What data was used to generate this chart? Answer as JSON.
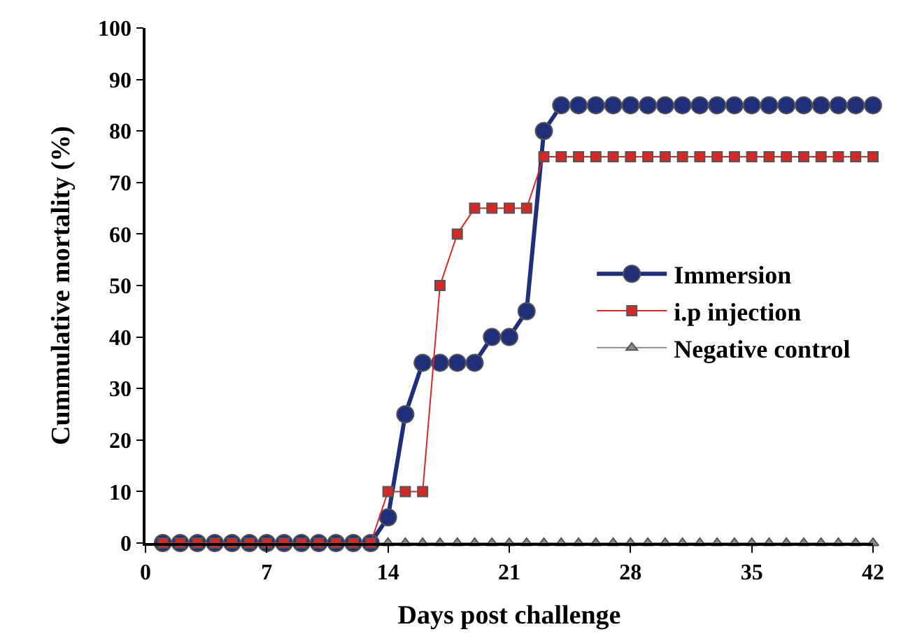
{
  "chart_data": {
    "type": "line",
    "xlabel": "Days post challenge",
    "ylabel": "Cummulative mortality (%)",
    "x": [
      1,
      2,
      3,
      4,
      5,
      6,
      7,
      8,
      9,
      10,
      11,
      12,
      13,
      14,
      15,
      16,
      17,
      18,
      19,
      20,
      21,
      22,
      23,
      24,
      25,
      26,
      27,
      28,
      29,
      30,
      31,
      32,
      33,
      34,
      35,
      36,
      37,
      38,
      39,
      40,
      41,
      42
    ],
    "series": [
      {
        "name": "Negative control",
        "color": "#8c8c8c",
        "marker": "triangle",
        "values": [
          0,
          0,
          0,
          0,
          0,
          0,
          0,
          0,
          0,
          0,
          0,
          0,
          0,
          0,
          0,
          0,
          0,
          0,
          0,
          0,
          0,
          0,
          0,
          0,
          0,
          0,
          0,
          0,
          0,
          0,
          0,
          0,
          0,
          0,
          0,
          0,
          0,
          0,
          0,
          0,
          0,
          0
        ]
      },
      {
        "name": "Immersion",
        "color": "#1f2f7a",
        "marker": "circle",
        "values": [
          0,
          0,
          0,
          0,
          0,
          0,
          0,
          0,
          0,
          0,
          0,
          0,
          0,
          5,
          25,
          35,
          35,
          35,
          35,
          40,
          40,
          45,
          80,
          85,
          85,
          85,
          85,
          85,
          85,
          85,
          85,
          85,
          85,
          85,
          85,
          85,
          85,
          85,
          85,
          85,
          85,
          85
        ]
      },
      {
        "name": "i.p injection",
        "color": "#d42a27",
        "marker": "square",
        "values": [
          0,
          0,
          0,
          0,
          0,
          0,
          0,
          0,
          0,
          0,
          0,
          0,
          0,
          10,
          10,
          10,
          50,
          60,
          65,
          65,
          65,
          65,
          75,
          75,
          75,
          75,
          75,
          75,
          75,
          75,
          75,
          75,
          75,
          75,
          75,
          75,
          75,
          75,
          75,
          75,
          75,
          75
        ]
      }
    ],
    "xlim": [
      0,
      42
    ],
    "xticks": [
      0,
      7,
      14,
      21,
      28,
      35,
      42
    ],
    "ylim": [
      0,
      100
    ],
    "yticks": [
      0,
      10,
      20,
      30,
      40,
      50,
      60,
      70,
      80,
      90,
      100
    ],
    "legend": "right",
    "line_style": "solid"
  }
}
